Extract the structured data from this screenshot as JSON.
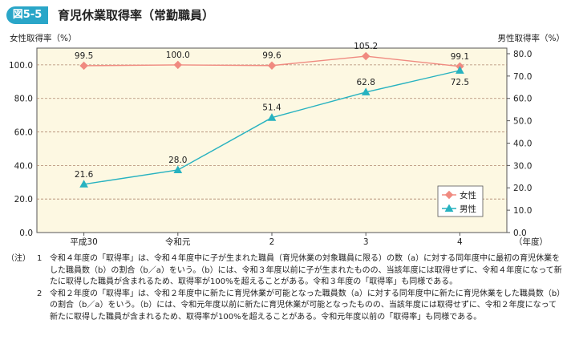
{
  "figure": {
    "number": "図5-5",
    "title": "育児休業取得率（常勤職員）"
  },
  "chart_data": {
    "type": "line",
    "categories": [
      "平成30",
      "令和元",
      "2",
      "3",
      "4"
    ],
    "x_unit": "（年度）",
    "left_axis": {
      "label": "女性取得率（%）",
      "ylim": [
        0,
        110
      ],
      "ticks": [
        "0.0",
        "20.0",
        "40.0",
        "60.0",
        "80.0",
        "100.0"
      ]
    },
    "right_axis": {
      "label": "男性取得率（%）",
      "ylim": [
        0,
        82.5
      ],
      "ticks": [
        "0.0",
        "10.0",
        "20.0",
        "30.0",
        "40.0",
        "50.0",
        "60.0",
        "70.0",
        "80.0"
      ]
    },
    "grid": true,
    "legend": "bottom-right",
    "series": [
      {
        "name": "女性",
        "axis": "left",
        "values": [
          99.5,
          100.0,
          99.6,
          105.2,
          99.1
        ],
        "labels": [
          "99.5",
          "100.0",
          "99.6",
          "105.2",
          "99.1"
        ],
        "color": "#f08a80"
      },
      {
        "name": "男性",
        "axis": "right",
        "values": [
          21.6,
          28.0,
          51.4,
          62.8,
          72.5
        ],
        "labels": [
          "21.6",
          "28.0",
          "51.4",
          "62.8",
          "72.5"
        ],
        "color": "#27b2c0"
      }
    ]
  },
  "notes": {
    "mark": "（注）",
    "items": [
      {
        "num": "1",
        "text": "令和４年度の「取得率」は、令和４年度中に子が生まれた職員（育児休業の対象職員に限る）の数（a）に対する同年度中に最初の育児休業をした職員数（b）の割合（b／a）をいう。（b）には、令和３年度以前に子が生まれたものの、当該年度には取得せずに、令和４年度になって新たに取得した職員が含まれるため、取得率が100%を超えることがある。令和３年度の「取得率」も同様である。"
      },
      {
        "num": "2",
        "text": "令和２年度の「取得率」は、令和２年度中に新たに育児休業が可能となった職員数（a）に対する同年度中に新たに育児休業をした職員数（b）の割合（b／a）をいう。（b）には、令和元年度以前に新たに育児休業が可能となったものの、当該年度には取得せずに、令和２年度になって新たに取得した職員が含まれるため、取得率が100%を超えることがある。令和元年度以前の「取得率」も同様である。"
      }
    ]
  }
}
